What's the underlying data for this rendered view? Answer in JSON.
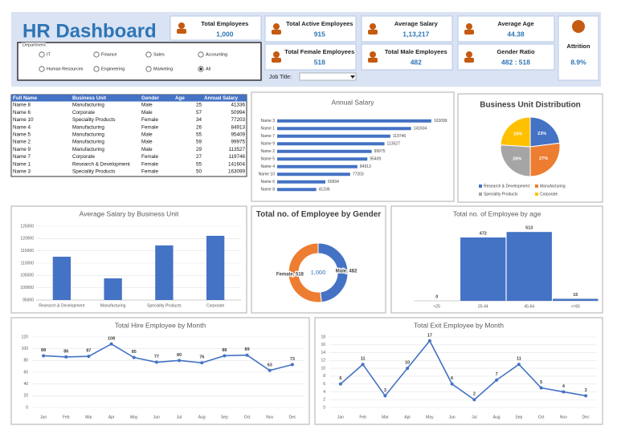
{
  "header": {
    "title": "HR Dashboard"
  },
  "kpis": [
    {
      "label": "Total Employees",
      "value": "1,000"
    },
    {
      "label": "Total Active Employees",
      "value": "915"
    },
    {
      "label": "Average Salary",
      "value": "1,13,217"
    },
    {
      "label": "Average Age",
      "value": "44.38"
    },
    {
      "label": "Attrition",
      "value": "8.9%"
    },
    {
      "label": "Total Female Employees",
      "value": "518"
    },
    {
      "label": "Total Male Employees",
      "value": "482"
    },
    {
      "label": "Gender Ratio",
      "value": "482 : 518"
    }
  ],
  "filters": {
    "department": {
      "label": "Department",
      "options": [
        "IT",
        "Finance",
        "Sales",
        "Accounting",
        "Human Resources",
        "Engineering",
        "Marketing",
        "All"
      ],
      "selected": "All"
    },
    "job_title": {
      "label": "Job Title:"
    }
  },
  "table": {
    "columns": [
      "Full Name",
      "Business Unit",
      "Gender",
      "Age",
      "Annual Salary"
    ],
    "rows": [
      [
        "Name 8",
        "Manufacturing",
        "Male",
        25,
        41336
      ],
      [
        "Name 6",
        "Corporate",
        "Male",
        57,
        50994
      ],
      [
        "Name 10",
        "Speciality Products",
        "Female",
        34,
        77203
      ],
      [
        "Name 4",
        "Manufacturing",
        "Female",
        26,
        84913
      ],
      [
        "Name 5",
        "Manufacturing",
        "Male",
        55,
        95409
      ],
      [
        "Name 2",
        "Manufacturing",
        "Male",
        59,
        99975
      ],
      [
        "Name 9",
        "Manufacturing",
        "Male",
        29,
        113527
      ],
      [
        "Name 7",
        "Corporate",
        "Female",
        27,
        119746
      ],
      [
        "Name 1",
        "Research & Development",
        "Female",
        55,
        141604
      ],
      [
        "Name 3",
        "Speciality Products",
        "Female",
        50,
        163099
      ]
    ]
  },
  "chart_data": [
    {
      "type": "bar",
      "horizontal": true,
      "title": "Annual Salary",
      "categories": [
        "Name 3",
        "Name 1",
        "Name 7",
        "Name 9",
        "Name 2",
        "Name 5",
        "Name 4",
        "Name 10",
        "Name 6",
        "Name 8"
      ],
      "values": [
        163099,
        141604,
        119746,
        113527,
        99975,
        95409,
        84913,
        77203,
        50994,
        41336
      ],
      "color": "#4472c4",
      "xlim": [
        0,
        170000
      ],
      "data_labels": true
    },
    {
      "type": "pie",
      "title": "Business Unit Distribution",
      "categories": [
        "Research & Development",
        "Manufacturing",
        "Speciality Products",
        "Corporate"
      ],
      "values": [
        23,
        27,
        26,
        24
      ],
      "value_labels": [
        "23%",
        "27%",
        "26%",
        "24%"
      ],
      "colors": [
        "#4472c4",
        "#ed7d31",
        "#a5a5a5",
        "#ffc000"
      ],
      "legend": "bottom"
    },
    {
      "type": "bar",
      "title": "Average Salary by Business Unit",
      "categories": [
        "Research & Development",
        "Manufacturing",
        "Speciality Products",
        "Corporate"
      ],
      "values": [
        112600,
        103800,
        117200,
        121100
      ],
      "color": "#4472c4",
      "ylim": [
        95000,
        125000
      ],
      "yticks": [
        95000,
        100000,
        105000,
        110000,
        115000,
        120000,
        125000
      ],
      "grid": true
    },
    {
      "type": "donut",
      "title": "Total no. of Employee by Gender",
      "categories": [
        "Male",
        "Female"
      ],
      "values": [
        482,
        518
      ],
      "value_labels": [
        "Male, 482",
        "Female, 518"
      ],
      "colors": [
        "#4472c4",
        "#ed7d31"
      ],
      "center_label": "1,000"
    },
    {
      "type": "bar",
      "title": "Total no. of Employee by age",
      "categories": [
        "<25",
        "25-44",
        "45-64",
        ">=65"
      ],
      "values": [
        0,
        472,
        513,
        15
      ],
      "color": "#4472c4",
      "ylim": [
        0,
        550
      ],
      "data_labels": true
    },
    {
      "type": "line",
      "title": "Total Hire Employee by Month",
      "categories": [
        "Jan",
        "Feb",
        "Mar",
        "Apr",
        "May",
        "Jun",
        "Jul",
        "Aug",
        "Sep",
        "Oct",
        "Nov",
        "Dec"
      ],
      "values": [
        88,
        86,
        87,
        108,
        85,
        77,
        80,
        76,
        88,
        89,
        63,
        73
      ],
      "color": "#4472c4",
      "ylim": [
        0,
        120
      ],
      "yticks": [
        0,
        20,
        40,
        60,
        80,
        100,
        120
      ],
      "grid": true,
      "data_labels": true
    },
    {
      "type": "line",
      "title": "Total Exit Employee by Month",
      "categories": [
        "Jan",
        "Feb",
        "Mar",
        "Apr",
        "May",
        "Jun",
        "Jul",
        "Aug",
        "Sep",
        "Oct",
        "Nov",
        "Dec"
      ],
      "values": [
        6,
        11,
        3,
        10,
        17,
        6,
        2,
        7,
        11,
        5,
        4,
        3
      ],
      "color": "#4472c4",
      "ylim": [
        0,
        18
      ],
      "yticks": [
        0,
        2,
        4,
        6,
        8,
        10,
        12,
        14,
        16,
        18
      ],
      "grid": true,
      "data_labels": true
    }
  ]
}
